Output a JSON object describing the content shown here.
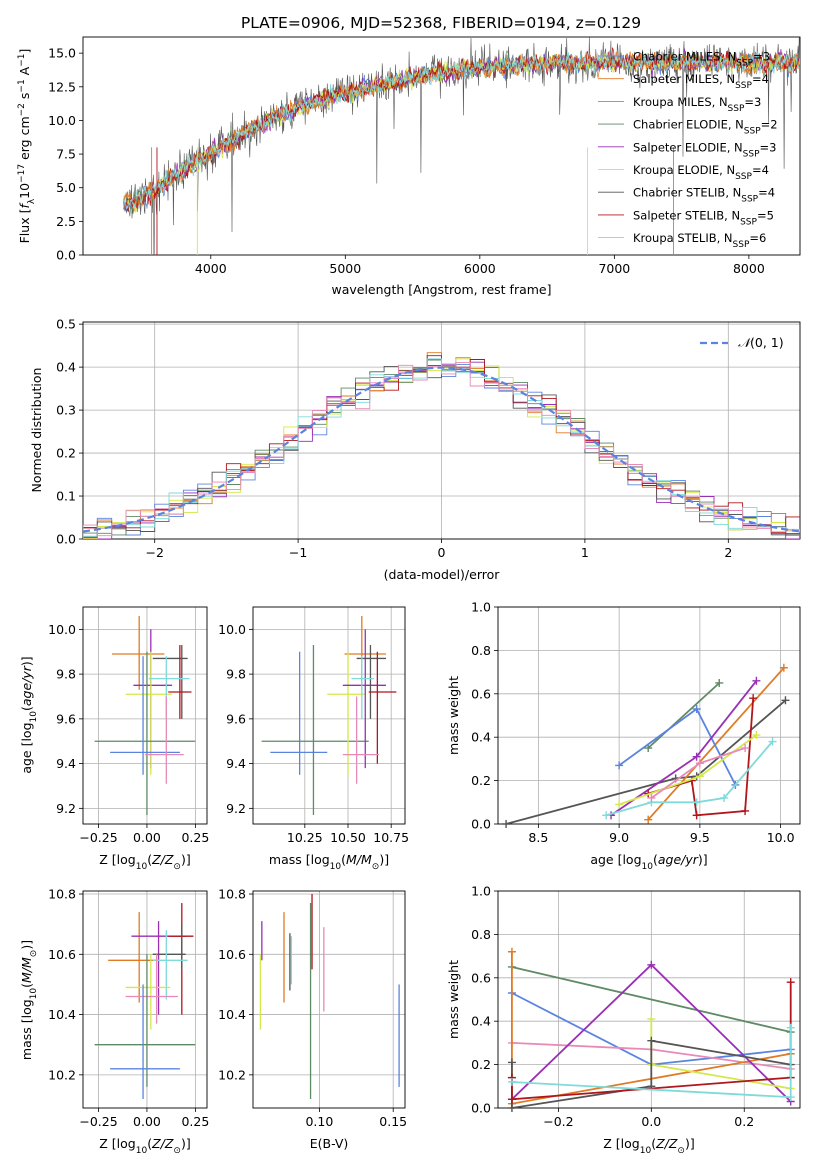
{
  "figure_title": "PLATE=0906, MJD=52368, FIBERID=0194, z=0.129",
  "models": [
    {
      "name": "Chabrier MILES",
      "nssp": "3",
      "color": "#5b84e0"
    },
    {
      "name": "Salpeter MILES",
      "nssp": "4",
      "color": "#e07a25"
    },
    {
      "name": "Kroupa MILES",
      "nssp": "3",
      "color": "#e07a25"
    },
    {
      "name": "Chabrier ELODIE",
      "nssp": "2",
      "color": "#5e8a64"
    },
    {
      "name": "Salpeter ELODIE",
      "nssp": "3",
      "color": "#9a2fb5"
    },
    {
      "name": "Kroupa ELODIE",
      "nssp": "4",
      "color": "#d4e84a"
    },
    {
      "name": "Chabrier STELIB",
      "nssp": "4",
      "color": "#555555"
    },
    {
      "name": "Salpeter STELIB",
      "nssp": "5",
      "color": "#b0161b"
    },
    {
      "name": "Kroupa STELIB",
      "nssp": "6",
      "color": "#7fdada"
    }
  ],
  "extra_colors": {
    "pink": "#e88ab8",
    "gray": "#7f7f7f"
  },
  "chart_data": [
    {
      "id": "spectrum",
      "type": "line",
      "xlabel": "wavelength [Angstrom, rest frame]",
      "ylabel": "Flux [f_λ10^-17 erg cm^-2 s^-1 A^-1]",
      "xlim": [
        3050,
        8380
      ],
      "ylim": [
        0,
        16.2
      ],
      "xticks": [
        4000,
        5000,
        6000,
        7000,
        8000
      ],
      "yticks": [
        0.0,
        2.5,
        5.0,
        7.5,
        10.0,
        12.5,
        15.0
      ],
      "grid": false,
      "legend": "right",
      "trend_x": [
        3400,
        3600,
        3800,
        4000,
        4200,
        4400,
        4600,
        4800,
        5000,
        5200,
        5400,
        5600,
        5800,
        6000,
        6200,
        6400,
        6600,
        6800,
        7000,
        7200,
        7400,
        7600,
        7800,
        8000,
        8200
      ],
      "trend_y": [
        3.8,
        5.0,
        6.3,
        7.6,
        8.8,
        9.9,
        10.8,
        11.5,
        12.0,
        12.6,
        13.0,
        13.4,
        13.7,
        14.0,
        14.1,
        14.2,
        14.3,
        14.3,
        14.3,
        14.3,
        14.3,
        14.3,
        14.3,
        14.3,
        14.3
      ]
    },
    {
      "id": "residuals",
      "type": "histogram",
      "xlabel": "(data-model)/error",
      "ylabel": "Normed distribution",
      "xlim": [
        -2.5,
        2.5
      ],
      "ylim": [
        0,
        0.505
      ],
      "xticks": [
        -2,
        -1,
        0,
        1,
        2
      ],
      "yticks": [
        0.0,
        0.1,
        0.2,
        0.3,
        0.4,
        0.5
      ],
      "grid": true,
      "legend": "top-right",
      "legend_label": "N(0,1)",
      "bins": [
        -2.5,
        -2.4,
        -2.3,
        -2.2,
        -2.1,
        -2.0,
        -1.9,
        -1.8,
        -1.7,
        -1.6,
        -1.5,
        -1.4,
        -1.3,
        -1.2,
        -1.1,
        -1.0,
        -0.9,
        -0.8,
        -0.7,
        -0.6,
        -0.5,
        -0.4,
        -0.3,
        -0.2,
        -0.1,
        0.0,
        0.1,
        0.2,
        0.3,
        0.4,
        0.5,
        0.6,
        0.7,
        0.8,
        0.9,
        1.0,
        1.1,
        1.2,
        1.3,
        1.4,
        1.5,
        1.6,
        1.7,
        1.8,
        1.9,
        2.0,
        2.1,
        2.2,
        2.3,
        2.4,
        2.5
      ]
    },
    {
      "id": "age_vs_Z",
      "type": "errorbar",
      "xlabel": "Z [log10(Z/Z⊙)]",
      "ylabel": "age  [log10(age/yr)]",
      "xlim": [
        -0.33,
        0.31
      ],
      "ylim": [
        9.13,
        10.1
      ],
      "xticks": [
        -0.25,
        0.0,
        0.25
      ],
      "xticklabels": [
        "−0.25",
        "0.00",
        "0.25"
      ],
      "yticks": [
        9.2,
        9.4,
        9.6,
        9.8,
        10.0
      ],
      "grid": true,
      "points": [
        {
          "c": "#e07a25",
          "x": -0.04,
          "y": 9.89,
          "xe": [
            -0.18,
            0.09
          ],
          "ye": [
            9.73,
            10.06
          ]
        },
        {
          "c": "#9a2fb5",
          "x": 0.02,
          "y": 9.75,
          "xe": [
            -0.07,
            0.13
          ],
          "ye": [
            9.38,
            10.0
          ]
        },
        {
          "c": "#d4e84a",
          "x": 0.02,
          "y": 9.71,
          "xe": [
            -0.11,
            0.13
          ],
          "ye": [
            9.35,
            9.9
          ]
        },
        {
          "c": "#555555",
          "x": 0.18,
          "y": 9.87,
          "xe": [
            0.03,
            0.21
          ],
          "ye": [
            9.6,
            9.93
          ]
        },
        {
          "c": "#b0161b",
          "x": 0.17,
          "y": 9.72,
          "xe": [
            0.11,
            0.23
          ],
          "ye": [
            9.6,
            9.93
          ]
        },
        {
          "c": "#7fdada",
          "x": 0.1,
          "y": 9.78,
          "xe": [
            0.01,
            0.22
          ],
          "ye": [
            9.6,
            9.88
          ]
        },
        {
          "c": "#5e8a64",
          "x": 0.0,
          "y": 9.5,
          "xe": [
            -0.27,
            0.25
          ],
          "ye": [
            9.17,
            9.9
          ]
        },
        {
          "c": "#5b84e0",
          "x": -0.02,
          "y": 9.45,
          "xe": [
            -0.19,
            0.17
          ],
          "ye": [
            9.35,
            9.88
          ]
        },
        {
          "c": "#e88ab8",
          "x": 0.1,
          "y": 9.44,
          "xe": [
            -0.01,
            0.19
          ],
          "ye": [
            9.31,
            9.7
          ]
        }
      ]
    },
    {
      "id": "age_vs_mass",
      "type": "errorbar",
      "xlabel": "mass [log10(M/M⊙)]",
      "ylabel": "",
      "xlim": [
        9.95,
        10.83
      ],
      "ylim": [
        9.13,
        10.1
      ],
      "xticks": [
        10.25,
        10.5,
        10.75
      ],
      "xticklabels": [
        "10.25",
        "10.50",
        "10.75"
      ],
      "yticks": [
        9.2,
        9.4,
        9.6,
        9.8,
        10.0
      ],
      "grid": true,
      "points": [
        {
          "c": "#5b84e0",
          "x": 10.22,
          "y": 9.45,
          "xe": [
            10.05,
            10.38
          ],
          "ye": [
            9.35,
            9.9
          ]
        },
        {
          "c": "#5e8a64",
          "x": 10.3,
          "y": 9.5,
          "xe": [
            10.0,
            10.62
          ],
          "ye": [
            9.17,
            9.93
          ]
        },
        {
          "c": "#e07a25",
          "x": 10.58,
          "y": 9.89,
          "xe": [
            10.48,
            10.72
          ],
          "ye": [
            9.73,
            10.06
          ]
        },
        {
          "c": "#d4e84a",
          "x": 10.5,
          "y": 9.71,
          "xe": [
            10.38,
            10.6
          ],
          "ye": [
            9.35,
            9.9
          ]
        },
        {
          "c": "#9a2fb5",
          "x": 10.6,
          "y": 9.75,
          "xe": [
            10.47,
            10.72
          ],
          "ye": [
            9.38,
            10.0
          ]
        },
        {
          "c": "#555555",
          "x": 10.63,
          "y": 9.87,
          "xe": [
            10.55,
            10.72
          ],
          "ye": [
            9.6,
            9.93
          ]
        },
        {
          "c": "#b0161b",
          "x": 10.67,
          "y": 9.72,
          "xe": [
            10.62,
            10.78
          ],
          "ye": [
            9.4,
            9.9
          ]
        },
        {
          "c": "#7fdada",
          "x": 10.58,
          "y": 9.78,
          "xe": [
            10.52,
            10.65
          ],
          "ye": [
            9.6,
            9.88
          ]
        },
        {
          "c": "#e88ab8",
          "x": 10.55,
          "y": 9.44,
          "xe": [
            10.47,
            10.68
          ],
          "ye": [
            9.31,
            9.7
          ]
        }
      ]
    },
    {
      "id": "mass_weight_vs_age",
      "type": "line",
      "xlabel": "age  [log10(age/yr)]",
      "ylabel": "mass weight",
      "xlim": [
        8.25,
        10.12
      ],
      "ylim": [
        0,
        1.0
      ],
      "xticks": [
        8.5,
        9.0,
        9.5,
        10.0
      ],
      "xticklabels": [
        "8.5",
        "9.0",
        "9.5",
        "10.0"
      ],
      "yticks": [
        0.0,
        0.2,
        0.4,
        0.6,
        0.8,
        1.0
      ],
      "grid": true,
      "series": [
        {
          "c": "#555555",
          "x": [
            8.3,
            9.35,
            9.48,
            10.03
          ],
          "y": [
            0.0,
            0.21,
            0.22,
            0.57
          ]
        },
        {
          "c": "#5e8a64",
          "x": 9.18,
          "y": 0.35,
          "x2": [
            9.18,
            9.62
          ],
          "y2": [
            0.35,
            0.65
          ]
        },
        {
          "c": "#5e8a64",
          "x": [
            9.18,
            9.62
          ],
          "y": [
            0.35,
            0.65
          ]
        },
        {
          "c": "#e07a25",
          "x": [
            9.18,
            10.02
          ],
          "y": [
            0.02,
            0.72
          ]
        },
        {
          "c": "#5b84e0",
          "x": [
            9.0,
            9.48,
            9.72
          ],
          "y": [
            0.27,
            0.53,
            0.18
          ]
        },
        {
          "c": "#9a2fb5",
          "x": [
            8.95,
            9.48,
            9.85
          ],
          "y": [
            0.04,
            0.31,
            0.66
          ]
        },
        {
          "c": "#b0161b",
          "x": [
            9.18,
            9.45,
            9.48,
            9.78,
            9.83
          ],
          "y": [
            0.14,
            0.2,
            0.04,
            0.06,
            0.58
          ]
        },
        {
          "c": "#d4e84a",
          "x": [
            9.0,
            9.5,
            9.85
          ],
          "y": [
            0.09,
            0.22,
            0.41
          ]
        },
        {
          "c": "#7fdada",
          "x": [
            8.92,
            9.2,
            9.48,
            9.65,
            9.95
          ],
          "y": [
            0.04,
            0.1,
            0.1,
            0.12,
            0.38
          ]
        },
        {
          "c": "#e88ab8",
          "x": [
            9.2,
            9.5,
            9.78
          ],
          "y": [
            0.12,
            0.28,
            0.35
          ]
        }
      ]
    },
    {
      "id": "mass_vs_Z",
      "type": "errorbar",
      "xlabel": "Z [log10(Z/Z⊙)]",
      "ylabel": "mass [log10(M/M⊙)]",
      "xlim": [
        -0.33,
        0.31
      ],
      "ylim": [
        10.09,
        10.81
      ],
      "xticks": [
        -0.25,
        0.0,
        0.25
      ],
      "xticklabels": [
        "−0.25",
        "0.00",
        "0.25"
      ],
      "yticks": [
        10.2,
        10.4,
        10.6,
        10.8
      ],
      "grid": true,
      "points": [
        {
          "c": "#e07a25",
          "x": -0.04,
          "y": 10.58,
          "xe": [
            -0.2,
            0.06
          ],
          "ye": [
            10.44,
            10.74
          ]
        },
        {
          "c": "#9a2fb5",
          "x": 0.06,
          "y": 10.66,
          "xe": [
            -0.08,
            0.2
          ],
          "ye": [
            10.4,
            10.71
          ]
        },
        {
          "c": "#b0161b",
          "x": 0.18,
          "y": 10.66,
          "xe": [
            0.11,
            0.24
          ],
          "ye": [
            10.4,
            10.77
          ]
        },
        {
          "c": "#555555",
          "x": 0.18,
          "y": 10.6,
          "xe": [
            0.03,
            0.2
          ],
          "ye": [
            10.55,
            10.7
          ]
        },
        {
          "c": "#7fdada",
          "x": 0.1,
          "y": 10.58,
          "xe": [
            0.03,
            0.21
          ],
          "ye": [
            10.45,
            10.68
          ]
        },
        {
          "c": "#d4e84a",
          "x": 0.02,
          "y": 10.49,
          "xe": [
            -0.11,
            0.12
          ],
          "ye": [
            10.35,
            10.6
          ]
        },
        {
          "c": "#e88ab8",
          "x": 0.05,
          "y": 10.46,
          "xe": [
            -0.11,
            0.16
          ],
          "ye": [
            10.37,
            10.6
          ]
        },
        {
          "c": "#5e8a64",
          "x": 0.0,
          "y": 10.3,
          "xe": [
            -0.27,
            0.25
          ],
          "ye": [
            10.16,
            10.6
          ]
        },
        {
          "c": "#5b84e0",
          "x": -0.02,
          "y": 10.22,
          "xe": [
            -0.19,
            0.17
          ],
          "ye": [
            10.12,
            10.5
          ]
        }
      ]
    },
    {
      "id": "mass_vs_ebv",
      "type": "errorbar",
      "xlabel": "E(B-V)",
      "ylabel": "",
      "xlim": [
        0.055,
        0.158
      ],
      "ylim": [
        10.09,
        10.81
      ],
      "xticks": [
        0.1,
        0.15
      ],
      "xticklabels": [
        "0.10",
        "0.15"
      ],
      "yticks": [
        10.2,
        10.4,
        10.6,
        10.8
      ],
      "grid": true,
      "points": [
        {
          "c": "#9a2fb5",
          "x": 0.061,
          "y": 10.66,
          "xe": [
            0.061,
            0.061
          ],
          "ye": [
            10.58,
            10.71
          ]
        },
        {
          "c": "#d4e84a",
          "x": 0.06,
          "y": 10.49,
          "xe": [
            0.06,
            0.06
          ],
          "ye": [
            10.35,
            10.6
          ]
        },
        {
          "c": "#e07a25",
          "x": 0.076,
          "y": 10.58,
          "xe": [
            0.076,
            0.076
          ],
          "ye": [
            10.44,
            10.74
          ]
        },
        {
          "c": "#555555",
          "x": 0.08,
          "y": 10.6,
          "xe": [
            0.08,
            0.08
          ],
          "ye": [
            10.48,
            10.67
          ]
        },
        {
          "c": "#7fdada",
          "x": 0.081,
          "y": 10.58,
          "xe": [
            0.081,
            0.081
          ],
          "ye": [
            10.5,
            10.66
          ]
        },
        {
          "c": "#5e8a64",
          "x": 0.094,
          "y": 10.3,
          "xe": [
            0.094,
            0.094
          ],
          "ye": [
            10.12,
            10.77
          ]
        },
        {
          "c": "#b0161b",
          "x": 0.095,
          "y": 10.66,
          "xe": [
            0.095,
            0.095
          ],
          "ye": [
            10.55,
            10.8
          ]
        },
        {
          "c": "#e88ab8",
          "x": 0.103,
          "y": 10.46,
          "xe": [
            0.103,
            0.103
          ],
          "ye": [
            10.41,
            10.69
          ]
        },
        {
          "c": "#5b84e0",
          "x": 0.154,
          "y": 10.22,
          "xe": [
            0.154,
            0.154
          ],
          "ye": [
            10.16,
            10.5
          ]
        }
      ]
    },
    {
      "id": "mass_weight_vs_Z",
      "type": "line",
      "xlabel": "Z [log10(Z/Z⊙)]",
      "ylabel": "mass weight",
      "xlim": [
        -0.33,
        0.32
      ],
      "ylim": [
        0,
        1.0
      ],
      "xticks": [
        -0.2,
        0.0,
        0.2
      ],
      "xticklabels": [
        "−0.2",
        "0.0",
        "0.2"
      ],
      "yticks": [
        0.0,
        0.2,
        0.4,
        0.6,
        0.8,
        1.0
      ],
      "grid": true,
      "series": [
        {
          "c": "#5e8a64",
          "x": [
            -0.3,
            0.3
          ],
          "y": [
            0.65,
            0.35
          ]
        },
        {
          "c": "#5b84e0",
          "x": [
            -0.3,
            0.0,
            0.3
          ],
          "y": [
            0.53,
            0.2,
            0.27
          ]
        },
        {
          "c": "#e88ab8",
          "x": [
            -0.3,
            0.0,
            0.3
          ],
          "y": [
            0.3,
            0.27,
            0.18
          ]
        },
        {
          "c": "#e07a25",
          "x": [
            -0.3,
            -0.3,
            0.3
          ],
          "y": [
            0.72,
            0.02,
            0.25
          ]
        },
        {
          "c": "#9a2fb5",
          "x": [
            -0.3,
            0.0,
            0.3
          ],
          "y": [
            0.04,
            0.66,
            0.03
          ]
        },
        {
          "c": "#d4e84a",
          "x": [
            0.0,
            0.0,
            0.3
          ],
          "y": [
            0.41,
            0.2,
            0.09
          ]
        },
        {
          "c": "#555555",
          "x": [
            -0.3,
            -0.3,
            0.0,
            0.0,
            0.3
          ],
          "y": [
            0.21,
            0.0,
            0.1,
            0.31,
            0.2
          ]
        },
        {
          "c": "#b0161b",
          "x": [
            -0.3,
            -0.3,
            0.3,
            0.3
          ],
          "y": [
            0.14,
            0.04,
            0.14,
            0.58
          ]
        },
        {
          "c": "#7fdada",
          "x": [
            -0.3,
            0.3,
            0.3
          ],
          "y": [
            0.12,
            0.05,
            0.37
          ]
        }
      ]
    }
  ]
}
